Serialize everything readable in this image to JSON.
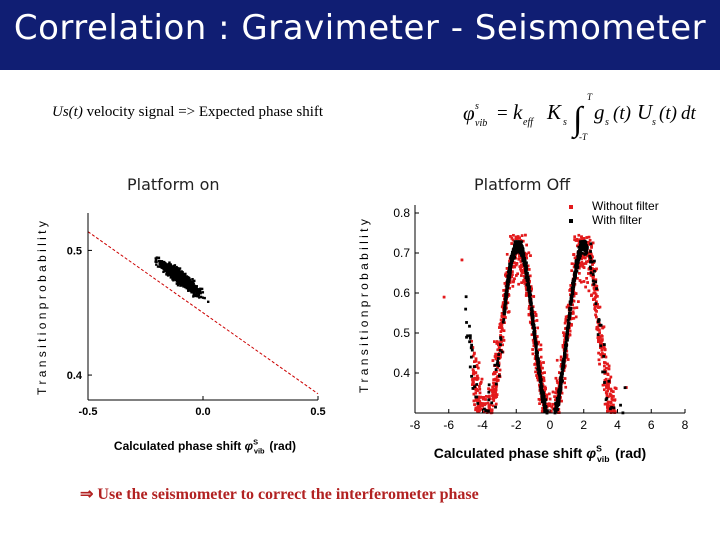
{
  "slide": {
    "title": "Correlation : Gravimeter - Seismometer",
    "subtitle_var": "Us(t)",
    "subtitle_rest": " velocity signal => Expected phase shift",
    "panel_left_label": "Platform on",
    "panel_right_label": "Platform Off",
    "conclusion_arrow": "⇒",
    "conclusion_text": " Use the seismometer to correct the interferometer phase",
    "accent_color": "#101e73"
  },
  "formula": {
    "lhs": "φ",
    "lhs_sup": "s",
    "lhs_sub": "vib",
    "eq": "=",
    "k": "k",
    "k_sub": "eff",
    "K": "K",
    "K_sub": "s",
    "int_top": "T",
    "int_bottom": "-T",
    "g": "g",
    "g_sub": "s",
    "gt": "(t)",
    "U": "U",
    "U_sub": "s",
    "Ut": "(t)",
    "dt": "dt"
  },
  "chart_data": [
    {
      "type": "scatter",
      "panel": "Platform on",
      "xlabel": "Calculated phase shift",
      "xlabel_sym": "φ",
      "xlabel_sup": "S",
      "xlabel_sub": "vib",
      "xlabel_unit": "(rad)",
      "ylabel_fragment": "T r a n s i t i o n  p r o b a b i l i t y",
      "xlim": [
        -0.5,
        0.5
      ],
      "ylim": [
        0.38,
        0.53
      ],
      "x_ticks": [
        -0.5,
        0.0,
        0.5
      ],
      "x_tick_labels": [
        "-0.5",
        "0.0",
        "0.5"
      ],
      "y_ticks": [
        0.4,
        0.5
      ],
      "y_tick_labels": [
        "0.4",
        "0.5"
      ],
      "fit_line": {
        "x": [
          -0.5,
          0.5
        ],
        "y": [
          0.515,
          0.385
        ]
      },
      "cloud": {
        "x_center": -0.1,
        "y_center": 0.478,
        "x_spread": 0.1,
        "slope": -0.13,
        "y_noise": 0.006,
        "count": 1200
      },
      "scatter_color": "#000000",
      "fit_color": "#cc0000"
    },
    {
      "type": "scatter",
      "panel": "Platform Off",
      "xlabel": "Calculated phase shift",
      "xlabel_sym": "φ",
      "xlabel_sup": "S",
      "xlabel_sub": "vib",
      "xlabel_unit": "(rad)",
      "ylabel_fragment": "T r a n s i t i o n  p r o b a b i l i t y",
      "xlim": [
        -8,
        8
      ],
      "ylim": [
        0.3,
        0.82
      ],
      "x_ticks": [
        -8,
        -6,
        -4,
        -2,
        0,
        2,
        4,
        6,
        8
      ],
      "x_tick_labels": [
        "-8",
        "-6",
        "-4",
        "-2",
        "0",
        "2",
        "4",
        "6",
        "8"
      ],
      "y_ticks": [
        0.4,
        0.5,
        0.6,
        0.7,
        0.8
      ],
      "y_tick_labels": [
        "0.4",
        "0.5",
        "0.6",
        "0.7",
        "0.8"
      ],
      "legend_position": "top-right",
      "series": [
        {
          "name": "Without filter",
          "color": "#e31a1c"
        },
        {
          "name": "With filter",
          "color": "#000000"
        }
      ],
      "model": {
        "mean": 0.5,
        "amplitude": 0.22,
        "period": 3.9,
        "phase_of_max": -1.9
      },
      "red_count": 2600,
      "black_count": 1400
    }
  ]
}
